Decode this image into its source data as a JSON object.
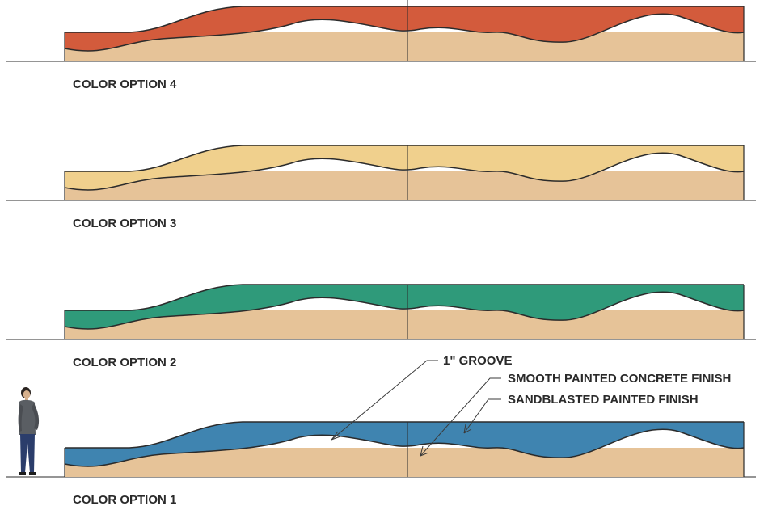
{
  "captions": {
    "option4": "COLOR OPTION 4",
    "option3": "COLOR OPTION 3",
    "option2": "COLOR OPTION 2",
    "option1": "COLOR OPTION 1"
  },
  "annotations": {
    "groove": "1\" GROOVE",
    "smooth": "SMOOTH PAINTED CONCRETE FINISH",
    "sandblasted": "SANDBLASTED PAINTED FINISH"
  },
  "colors": {
    "base_sand": "#e6c398",
    "option4": "#d35b3c",
    "option3": "#f0d08d",
    "option2": "#2f9a7a",
    "option1": "#3f84b0",
    "outline": "#2b2b2b"
  },
  "icons": {
    "scale_figure": "standing-person-figure"
  }
}
